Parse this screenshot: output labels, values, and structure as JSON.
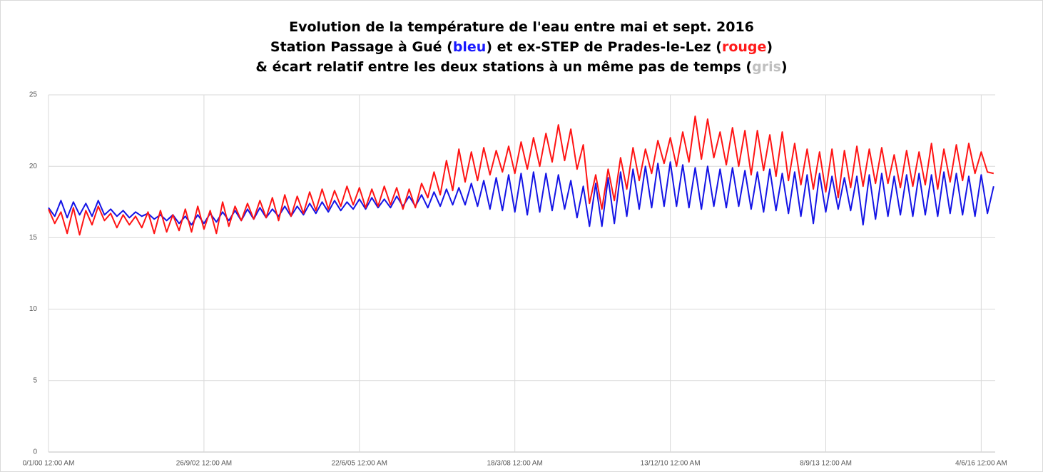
{
  "chart_data": {
    "type": "line",
    "title": [
      [
        {
          "text": "Evolution de la température de l'eau entre mai et sept. 2016"
        }
      ],
      [
        {
          "text": "Station Passage à Gué ("
        },
        {
          "text": "bleu",
          "color": "#1a1aff"
        },
        {
          "text": ") et ex-STEP de Prades-le-Lez ("
        },
        {
          "text": "rouge",
          "color": "#ff1a1a"
        },
        {
          "text": ")"
        }
      ],
      [
        {
          "text": "& écart relatif entre les deux stations à un même pas de temps ("
        },
        {
          "text": "gris",
          "color": "#bfbfbf"
        },
        {
          "text": ")"
        }
      ]
    ],
    "x": [
      0,
      40,
      80,
      120,
      160,
      200,
      240,
      280,
      320,
      360,
      400,
      440,
      480,
      520,
      560,
      600,
      640,
      680,
      720,
      760,
      800,
      840,
      880,
      920,
      960,
      1000,
      1040,
      1080,
      1120,
      1160,
      1200,
      1240,
      1280,
      1320,
      1360,
      1400,
      1440,
      1480,
      1520,
      1560,
      1600,
      1640,
      1680,
      1720,
      1760,
      1800,
      1840,
      1880,
      1920,
      1960,
      2000,
      2040,
      2080,
      2120,
      2160,
      2200,
      2240,
      2280,
      2320,
      2360,
      2400,
      2440,
      2480,
      2520,
      2560,
      2600,
      2640,
      2680,
      2720,
      2760,
      2800,
      2840,
      2880,
      2920,
      2960,
      3000,
      3040,
      3080,
      3120,
      3160,
      3200,
      3240,
      3280,
      3320,
      3360,
      3400,
      3440,
      3480,
      3520,
      3560,
      3600,
      3640,
      3680,
      3720,
      3760,
      3800,
      3840,
      3880,
      3920,
      3960,
      4000,
      4040,
      4080,
      4120,
      4160,
      4200,
      4240,
      4280,
      4320,
      4360,
      4400,
      4440,
      4480,
      4520,
      4560,
      4600,
      4640,
      4680,
      4720,
      4760,
      4800,
      4840,
      4880,
      4920,
      4960,
      5000,
      5040,
      5080,
      5120,
      5160,
      5200,
      5240,
      5280,
      5320,
      5360,
      5400,
      5440,
      5480,
      5520,
      5560,
      5600,
      5640,
      5680,
      5720,
      5760,
      5800,
      5840,
      5880,
      5920,
      5960,
      6000,
      6040,
      6080
    ],
    "series": [
      {
        "color": "#1414e6",
        "values": [
          17.1,
          16.5,
          17.6,
          16.4,
          17.5,
          16.6,
          17.4,
          16.5,
          17.6,
          16.6,
          17.0,
          16.5,
          16.9,
          16.4,
          16.8,
          16.5,
          16.7,
          16.3,
          16.6,
          16.2,
          16.6,
          16.0,
          16.5,
          15.9,
          16.6,
          16.0,
          16.7,
          16.1,
          16.8,
          16.2,
          16.9,
          16.2,
          17.0,
          16.3,
          17.1,
          16.4,
          17.0,
          16.5,
          17.2,
          16.5,
          17.2,
          16.6,
          17.4,
          16.7,
          17.5,
          16.8,
          17.6,
          16.9,
          17.5,
          17.0,
          17.7,
          17.0,
          17.8,
          17.1,
          17.7,
          17.1,
          17.9,
          17.2,
          17.9,
          17.2,
          18.0,
          17.1,
          18.2,
          17.2,
          18.4,
          17.3,
          18.5,
          17.3,
          18.8,
          17.2,
          19.0,
          17.0,
          19.2,
          16.9,
          19.4,
          16.8,
          19.5,
          16.6,
          19.6,
          16.8,
          19.5,
          16.9,
          19.4,
          17.0,
          19.0,
          16.4,
          18.6,
          15.8,
          18.8,
          15.8,
          19.2,
          16.0,
          19.6,
          16.5,
          19.8,
          17.0,
          20.0,
          17.1,
          20.2,
          17.2,
          20.3,
          17.2,
          20.1,
          17.1,
          19.9,
          17.0,
          20.0,
          17.2,
          19.8,
          17.1,
          19.9,
          17.2,
          19.7,
          17.0,
          19.6,
          16.8,
          19.8,
          16.9,
          19.5,
          16.7,
          19.6,
          16.5,
          19.4,
          16.0,
          19.5,
          16.8,
          19.3,
          17.0,
          19.2,
          16.9,
          19.3,
          15.9,
          19.4,
          16.3,
          19.5,
          16.5,
          19.3,
          16.6,
          19.4,
          16.5,
          19.5,
          16.6,
          19.4,
          16.5,
          19.6,
          16.7,
          19.5,
          16.6,
          19.3,
          16.5,
          19.4,
          16.7,
          18.6
        ]
      },
      {
        "color": "#ff1414",
        "values": [
          17.0,
          16.0,
          16.8,
          15.3,
          17.1,
          15.2,
          16.9,
          15.9,
          17.2,
          16.2,
          16.7,
          15.7,
          16.6,
          15.9,
          16.5,
          15.7,
          16.8,
          15.3,
          16.9,
          15.4,
          16.6,
          15.5,
          17.0,
          15.4,
          17.2,
          15.6,
          16.9,
          15.3,
          17.5,
          15.8,
          17.2,
          16.2,
          17.4,
          16.3,
          17.6,
          16.4,
          17.8,
          16.2,
          18.0,
          16.5,
          17.9,
          16.7,
          18.2,
          16.9,
          18.4,
          17.0,
          18.3,
          17.2,
          18.6,
          17.3,
          18.5,
          17.1,
          18.4,
          17.2,
          18.6,
          17.3,
          18.5,
          17.0,
          18.4,
          17.1,
          18.8,
          17.8,
          19.6,
          18.0,
          20.4,
          18.3,
          21.2,
          18.9,
          21.0,
          19.0,
          21.3,
          19.4,
          21.1,
          19.6,
          21.4,
          19.5,
          21.7,
          19.8,
          22.0,
          20.0,
          22.3,
          20.3,
          22.9,
          20.4,
          22.6,
          19.8,
          21.5,
          17.4,
          19.4,
          17.0,
          19.8,
          17.6,
          20.6,
          18.4,
          21.3,
          19.0,
          21.2,
          19.5,
          21.8,
          20.2,
          22.0,
          20.0,
          22.4,
          20.3,
          23.5,
          20.5,
          23.3,
          20.6,
          22.4,
          20.1,
          22.7,
          20.0,
          22.5,
          19.4,
          22.5,
          19.7,
          22.2,
          19.3,
          22.4,
          19.0,
          21.6,
          18.7,
          21.2,
          18.4,
          21.0,
          18.2,
          21.2,
          17.8,
          21.1,
          18.5,
          21.4,
          18.6,
          21.2,
          18.8,
          21.3,
          18.8,
          20.8,
          18.5,
          21.1,
          18.6,
          21.0,
          18.7,
          21.6,
          18.4,
          21.2,
          18.9,
          21.5,
          19.0,
          21.6,
          19.5,
          21.0,
          19.6,
          19.5
        ]
      }
    ],
    "xlim": [
      0,
      6090
    ],
    "xticks": [
      {
        "value": 0,
        "label": "0/1/00 12:00 AM"
      },
      {
        "value": 1000,
        "label": "26/9/02 12:00 AM"
      },
      {
        "value": 2000,
        "label": "22/6/05 12:00 AM"
      },
      {
        "value": 3000,
        "label": "18/3/08 12:00 AM"
      },
      {
        "value": 4000,
        "label": "13/12/10 12:00 AM"
      },
      {
        "value": 5000,
        "label": "8/9/13 12:00 AM"
      },
      {
        "value": 6000,
        "label": "4/6/16 12:00 AM"
      }
    ],
    "ylim": [
      0,
      25
    ],
    "yticks": [
      0,
      5,
      10,
      15,
      20,
      25
    ],
    "grid": true
  }
}
